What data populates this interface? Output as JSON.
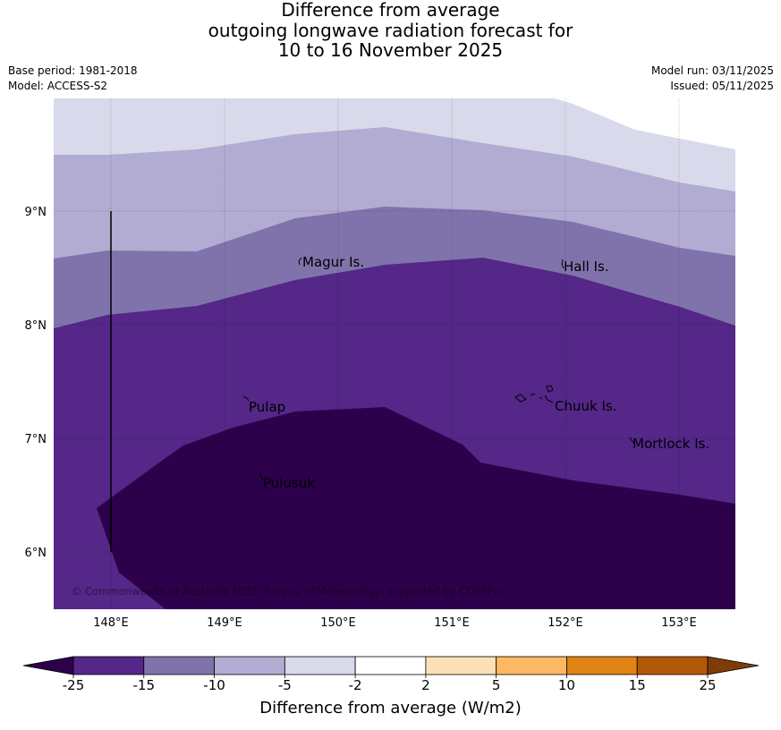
{
  "title": {
    "line1": "Difference from average",
    "line2": "outgoing longwave radiation forecast for",
    "line3": "10 to 16 November 2025"
  },
  "meta": {
    "base_period": "Base period: 1981-2018",
    "model": "Model: ACCESS-S2",
    "model_run": "Model run: 03/11/2025",
    "issued": "Issued: 05/11/2025"
  },
  "map": {
    "lat_labels": [
      "9°N",
      "8°N",
      "7°N",
      "6°N"
    ],
    "lon_labels": [
      "148°E",
      "149°E",
      "150°E",
      "151°E",
      "152°E",
      "153°E"
    ],
    "places": [
      {
        "name": "Magur Is."
      },
      {
        "name": "Hall Is."
      },
      {
        "name": "Pulap"
      },
      {
        "name": "Chuuk Is."
      },
      {
        "name": "Mortlock Is."
      },
      {
        "name": "Pulusuk"
      }
    ],
    "copyright": "© Commonwealth of Australia 2025, Bureau of Meteorology, supported by COSPPac"
  },
  "colorbar": {
    "tick_labels": [
      "-25",
      "-15",
      "-10",
      "-5",
      "-2",
      "2",
      "5",
      "10",
      "15",
      "25"
    ],
    "colors": [
      "#2d004b",
      "#542788",
      "#8073ac",
      "#b2abd2",
      "#d8daeb",
      "#ffffff",
      "#fee0b6",
      "#fdb863",
      "#e08214",
      "#b35806",
      "#7f3b08"
    ],
    "title": "Difference from average (W/m2)"
  },
  "legend_colors": {
    "lt_neg25": "#2d004b",
    "neg25_neg15": "#542788",
    "neg15_neg10": "#8073ac",
    "neg10_neg5": "#b2abd2",
    "neg5_neg2": "#d8daeb"
  }
}
